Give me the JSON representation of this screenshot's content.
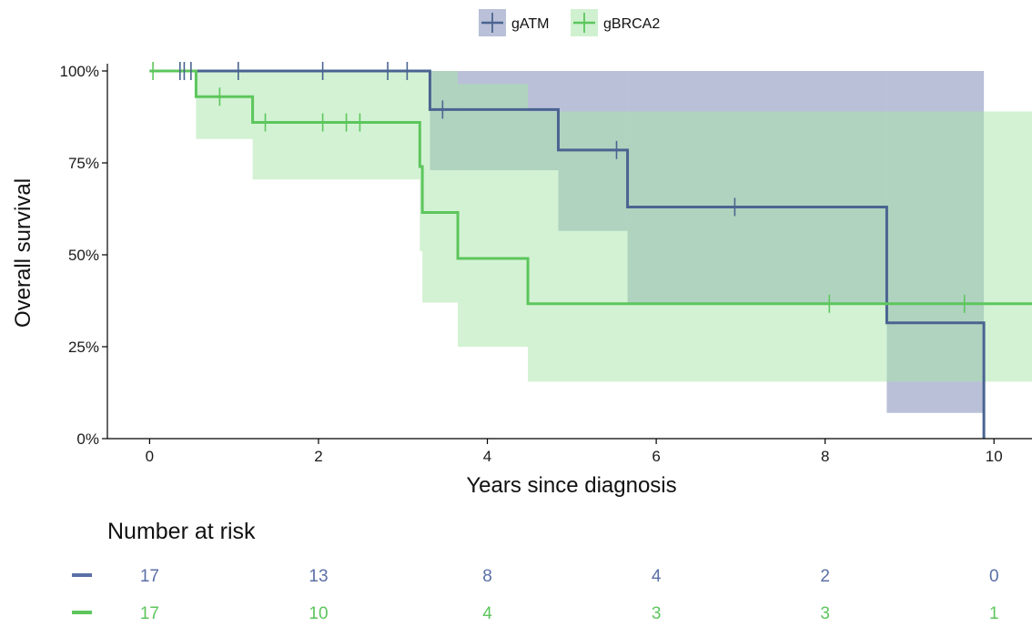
{
  "chart_data": {
    "type": "line",
    "subtype": "kaplan-meier survival curve with confidence bands",
    "title": "",
    "xlabel": "Years since diagnosis",
    "ylabel": "Overall survival",
    "xlim": [
      -0.5,
      10.45
    ],
    "ylim": [
      0,
      1
    ],
    "xticks": [
      0,
      2,
      4,
      6,
      8,
      10
    ],
    "xtick_labels": [
      "0",
      "2",
      "4",
      "6",
      "8",
      "10"
    ],
    "yticks": [
      0,
      0.25,
      0.5,
      0.75,
      1.0
    ],
    "ytick_labels": [
      "0%",
      "25%",
      "50%",
      "75%",
      "100%"
    ],
    "grid": false,
    "legend_position": "top-center",
    "series": [
      {
        "name": "gATM",
        "color": "#4a6491",
        "band_color": "#7f8db8",
        "steps": [
          [
            0,
            1.0
          ],
          [
            3.32,
            0.895
          ],
          [
            4.84,
            0.785
          ],
          [
            5.66,
            0.63
          ],
          [
            8.73,
            0.315
          ],
          [
            9.88,
            0.0
          ]
        ],
        "end_x": 9.88,
        "band_lower": [
          [
            0,
            1.0
          ],
          [
            3.32,
            0.73
          ],
          [
            4.84,
            0.565
          ],
          [
            5.66,
            0.37
          ],
          [
            8.73,
            0.07
          ],
          [
            9.88,
            0.07
          ]
        ],
        "band_upper": [
          [
            0,
            1.0
          ],
          [
            3.32,
            1.0
          ],
          [
            9.88,
            1.0
          ]
        ],
        "censor_x": [
          0.36,
          0.41,
          0.49,
          1.05,
          2.05,
          2.82,
          3.05,
          3.47,
          5.53,
          6.93
        ]
      },
      {
        "name": "gBRCA2",
        "color": "#5cc65c",
        "band_color": "#a8e6a8",
        "steps": [
          [
            0,
            1.0
          ],
          [
            0.55,
            0.93
          ],
          [
            1.22,
            0.86
          ],
          [
            3.2,
            0.74
          ],
          [
            3.23,
            0.615
          ],
          [
            3.65,
            0.49
          ],
          [
            4.48,
            0.367
          ]
        ],
        "end_x": 10.45,
        "band_lower": [
          [
            0,
            1.0
          ],
          [
            0.55,
            0.815
          ],
          [
            1.22,
            0.705
          ],
          [
            3.2,
            0.51
          ],
          [
            3.23,
            0.37
          ],
          [
            3.65,
            0.25
          ],
          [
            4.48,
            0.155
          ]
        ],
        "band_upper": [
          [
            0,
            1.0
          ],
          [
            3.65,
            0.965
          ],
          [
            4.48,
            0.89
          ]
        ],
        "censor_x": [
          0.04,
          0.83,
          1.37,
          2.05,
          2.33,
          2.49,
          8.05,
          9.65
        ]
      }
    ],
    "risk_table": {
      "title": "Number at risk",
      "times": [
        0,
        2,
        4,
        6,
        8,
        10
      ],
      "rows": [
        {
          "name": "gATM",
          "color": "#5a6fa6",
          "values": [
            "17",
            "13",
            "8",
            "4",
            "2",
            "0"
          ]
        },
        {
          "name": "gBRCA2",
          "color": "#5cc65c",
          "values": [
            "17",
            "10",
            "4",
            "3",
            "3",
            "1"
          ]
        }
      ]
    }
  }
}
